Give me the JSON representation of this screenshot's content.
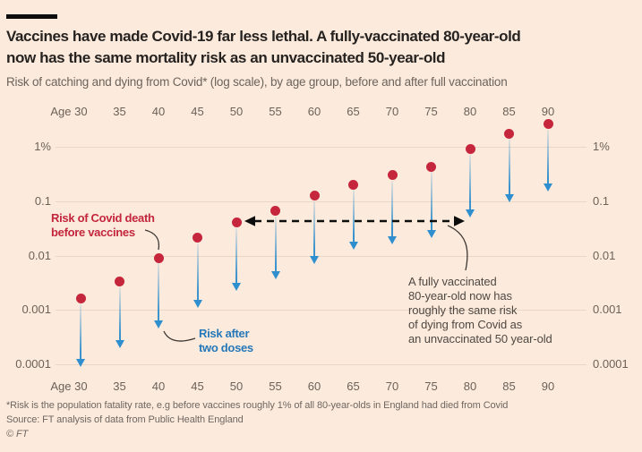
{
  "header": {
    "title_lines": [
      "Vaccines have made Covid-19 far less lethal. A fully-vaccinated 80-year-old",
      "now has the same mortality risk as an unvaccinated 50-year-old"
    ],
    "subtitle": "Risk of catching and dying from Covid* (log scale), by age group, before and after full vaccination"
  },
  "chart_data": {
    "type": "scatter",
    "log_scale": true,
    "unit": "percent",
    "x_axis_shown": "top and bottom",
    "categories": [
      "Age 30",
      "35",
      "40",
      "45",
      "50",
      "55",
      "60",
      "65",
      "70",
      "75",
      "80",
      "85",
      "90"
    ],
    "ages": [
      30,
      35,
      40,
      45,
      50,
      55,
      60,
      65,
      70,
      75,
      80,
      85,
      90
    ],
    "series": [
      {
        "name": "Risk of Covid death before vaccines",
        "marker": "red dot",
        "values": [
          0.0016,
          0.0033,
          0.009,
          0.021,
          0.04,
          0.066,
          0.125,
          0.2,
          0.3,
          0.43,
          0.9,
          1.75,
          2.6
        ]
      },
      {
        "name": "Risk after two doses",
        "marker": "blue arrow tip",
        "values": [
          9e-05,
          0.0002,
          0.00045,
          0.0011,
          0.0022,
          0.0036,
          0.007,
          0.013,
          0.016,
          0.021,
          0.05,
          0.095,
          0.15
        ]
      }
    ],
    "y_ticks": [
      {
        "label": "1%",
        "value": 1
      },
      {
        "label": "0.1",
        "value": 0.1
      },
      {
        "label": "0.01",
        "value": 0.01
      },
      {
        "label": "0.001",
        "value": 0.001
      },
      {
        "label": "0.0001",
        "value": 0.0001
      }
    ],
    "ylim": [
      8e-05,
      3.5
    ],
    "grid": true,
    "legend_position": "none (in-chart annotations)",
    "comparison_arrow": {
      "from_age": 50,
      "to_age": 80,
      "style": "black dashed, double-headed"
    }
  },
  "annotations": {
    "before": {
      "text": "Risk of Covid death\nbefore vaccines"
    },
    "after": {
      "text": "Risk after\ntwo doses"
    },
    "comparison": {
      "text": "A fully vaccinated\n80-year-old now has\nroughly the same risk\nof dying from Covid as\nan unvaccinated 50 year-old"
    }
  },
  "footer": {
    "footnote": "*Risk is the population fatality rate, e.g before vaccines roughly 1% of all 80-year-olds in England had died from Covid",
    "source": "Source: FT analysis of data from Public Health England",
    "copyright": "© FT"
  },
  "colors": {
    "background": "#fcebdd",
    "gridline": "#ead6c4",
    "before_dot_red": "#c5263c",
    "after_arrow_blue": "#3a93cd",
    "annotation_red_text": "#c3253c",
    "annotation_blue_text": "#2678b9",
    "annotation_dark_text": "#4f4842",
    "dashed_arrow": "#0d0d0d",
    "title_text": "#262220",
    "muted_text": "#6b6158"
  }
}
